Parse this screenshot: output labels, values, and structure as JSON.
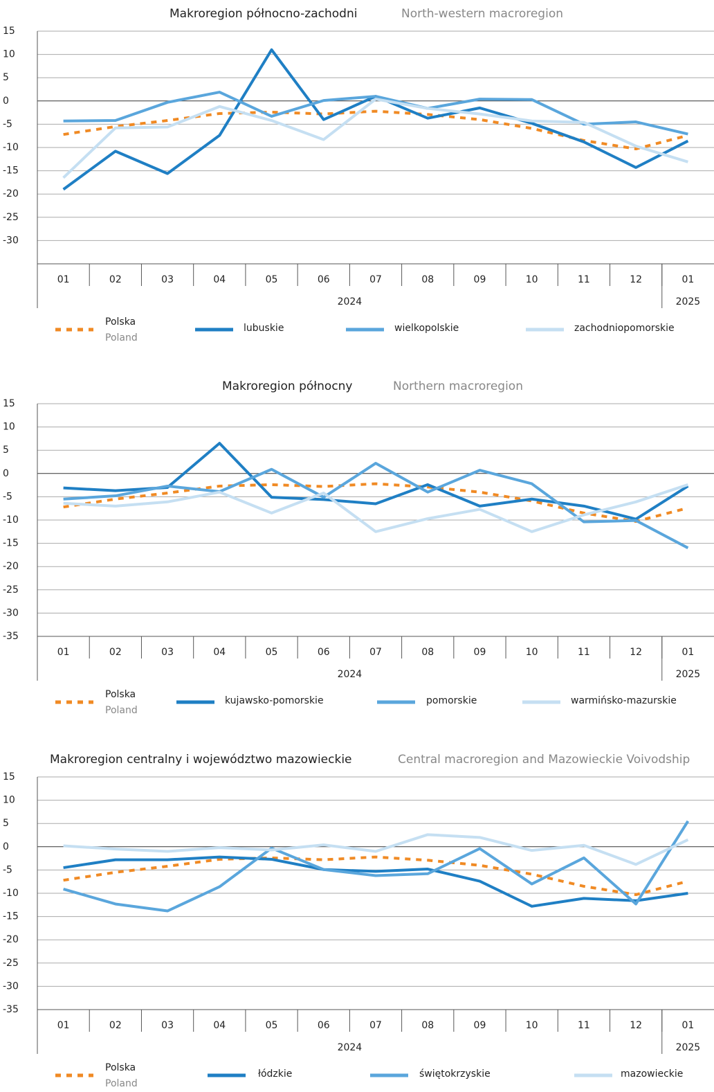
{
  "chart_data": [
    {
      "type": "line",
      "title": "Makroregion północno-zachodni",
      "subtitle": "North-western macroregion",
      "categories": [
        "01",
        "02",
        "03",
        "04",
        "05",
        "06",
        "07",
        "08",
        "09",
        "10",
        "11",
        "12",
        "01"
      ],
      "x_groups": [
        {
          "label": "2024",
          "span": 12
        },
        {
          "label": "2025",
          "span": 1
        }
      ],
      "ylim": [
        -35,
        15
      ],
      "yticks": [
        15,
        10,
        5,
        0,
        -5,
        -10,
        -15,
        -20,
        -25,
        -30
      ],
      "grid": true,
      "series": [
        {
          "name": "Polska",
          "name_en": "Poland",
          "color": "#f08a24",
          "dashed": true,
          "values": [
            -7.2,
            -5.5,
            -4.2,
            -2.7,
            -2.4,
            -2.8,
            -2.2,
            -2.9,
            -4.0,
            -5.9,
            -8.5,
            -10.3,
            -7.4
          ]
        },
        {
          "name": "lubuskie",
          "color": "#1f7fc4",
          "values": [
            -19.0,
            -10.8,
            -15.6,
            -7.4,
            11.0,
            -4.0,
            1.0,
            -3.7,
            -1.5,
            -4.8,
            -8.8,
            -14.3,
            -8.6
          ]
        },
        {
          "name": "wielkopolskie",
          "color": "#5aa6dc",
          "values": [
            -4.3,
            -4.2,
            -0.3,
            1.9,
            -3.3,
            0.1,
            1.0,
            -1.6,
            0.4,
            0.3,
            -5.0,
            -4.5,
            -7.1
          ]
        },
        {
          "name": "zachodniopomorskie",
          "color": "#c5dff2",
          "values": [
            -16.5,
            -5.8,
            -5.6,
            -1.2,
            -4.2,
            -8.3,
            0.4,
            -1.6,
            -2.8,
            -4.3,
            -4.6,
            -9.7,
            -13.1
          ]
        }
      ]
    },
    {
      "type": "line",
      "title": "Makroregion północny",
      "subtitle": "Northern macroregion",
      "categories": [
        "01",
        "02",
        "03",
        "04",
        "05",
        "06",
        "07",
        "08",
        "09",
        "10",
        "11",
        "12",
        "01"
      ],
      "x_groups": [
        {
          "label": "2024",
          "span": 12
        },
        {
          "label": "2025",
          "span": 1
        }
      ],
      "ylim": [
        -35,
        15
      ],
      "yticks": [
        15,
        10,
        5,
        0,
        -5,
        -10,
        -15,
        -20,
        -25,
        -30,
        -35
      ],
      "grid": true,
      "series": [
        {
          "name": "Polska",
          "name_en": "Poland",
          "color": "#f08a24",
          "dashed": true,
          "values": [
            -7.2,
            -5.5,
            -4.2,
            -2.7,
            -2.4,
            -2.8,
            -2.2,
            -2.9,
            -4.0,
            -5.9,
            -8.5,
            -10.3,
            -7.4
          ]
        },
        {
          "name": "kujawsko-pomorskie",
          "color": "#1f7fc4",
          "values": [
            -3.1,
            -3.7,
            -3.0,
            6.5,
            -5.1,
            -5.6,
            -6.5,
            -2.4,
            -7.0,
            -5.5,
            -7.0,
            -9.8,
            -2.7
          ]
        },
        {
          "name": "pomorskie",
          "color": "#5aa6dc",
          "values": [
            -5.5,
            -4.8,
            -2.7,
            -3.9,
            0.9,
            -5.1,
            2.2,
            -4.0,
            0.7,
            -2.2,
            -10.4,
            -10.1,
            -16.0
          ]
        },
        {
          "name": "warmińsko-mazurskie",
          "color": "#c5dff2",
          "values": [
            -6.4,
            -7.0,
            -6.1,
            -4.0,
            -8.5,
            -4.2,
            -12.5,
            -9.7,
            -7.7,
            -12.5,
            -8.9,
            -6.1,
            -2.4
          ]
        }
      ]
    },
    {
      "type": "line",
      "title": "Makroregion centralny i województwo mazowieckie",
      "subtitle": "Central macroregion and Mazowieckie Voivodship",
      "categories": [
        "01",
        "02",
        "03",
        "04",
        "05",
        "06",
        "07",
        "08",
        "09",
        "10",
        "11",
        "12",
        "01"
      ],
      "x_groups": [
        {
          "label": "2024",
          "span": 12
        },
        {
          "label": "2025",
          "span": 1
        }
      ],
      "ylim": [
        -35,
        15
      ],
      "yticks": [
        15,
        10,
        5,
        0,
        -5,
        -10,
        -15,
        -20,
        -25,
        -30,
        -35
      ],
      "grid": true,
      "series": [
        {
          "name": "Polska",
          "name_en": "Poland",
          "color": "#f08a24",
          "dashed": true,
          "values": [
            -7.2,
            -5.5,
            -4.2,
            -2.7,
            -2.4,
            -2.8,
            -2.2,
            -2.9,
            -4.0,
            -5.9,
            -8.5,
            -10.3,
            -7.4
          ]
        },
        {
          "name": "łódzkie",
          "color": "#1f7fc4",
          "values": [
            -4.5,
            -2.8,
            -2.8,
            -2.2,
            -2.7,
            -4.9,
            -5.3,
            -4.8,
            -7.4,
            -12.8,
            -11.1,
            -11.6,
            -10.0
          ]
        },
        {
          "name": "świętokrzyskie",
          "color": "#5aa6dc",
          "values": [
            -9.1,
            -12.3,
            -13.8,
            -8.6,
            -0.3,
            -4.9,
            -6.2,
            -5.8,
            -0.4,
            -8.0,
            -2.4,
            -12.3,
            5.5
          ]
        },
        {
          "name": "mazowieckie",
          "color": "#c5dff2",
          "values": [
            0.2,
            -0.5,
            -1.0,
            -0.2,
            -0.7,
            0.4,
            -1.0,
            2.6,
            2.0,
            -0.8,
            0.3,
            -3.8,
            1.5
          ]
        }
      ]
    }
  ]
}
